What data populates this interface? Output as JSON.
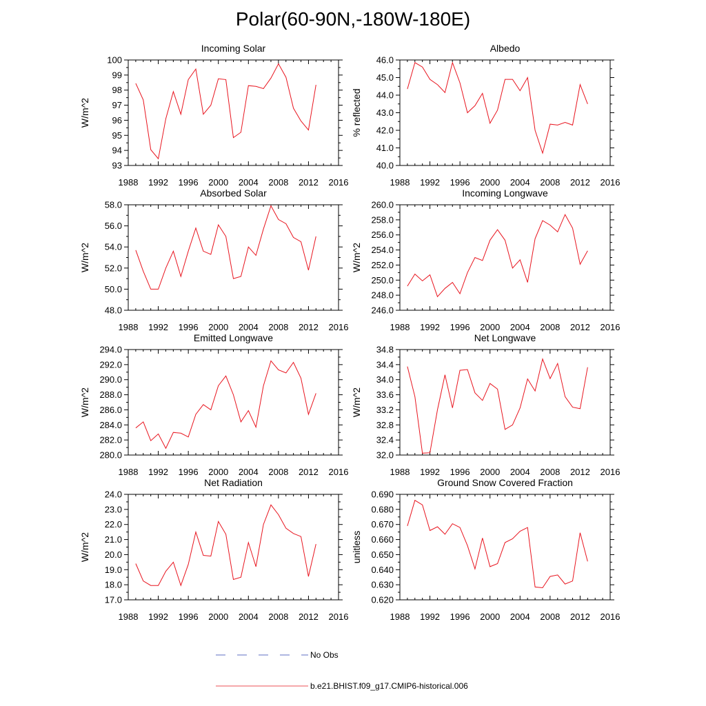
{
  "title": "Polar(60-90N,-180W-180E)",
  "legend": [
    {
      "label": "No Obs",
      "color": "#2a3fb0",
      "dash": true
    },
    {
      "label": "b.e21.BHIST.f09_g17.CMIP6-historical.006",
      "color": "#e8141e",
      "dash": false
    }
  ],
  "chart_data": [
    {
      "type": "line",
      "title": "Incoming Solar",
      "ylabel": "W/m^2",
      "xlim": [
        1988,
        2016
      ],
      "ylim": [
        93,
        100
      ],
      "xticks": [
        "1988",
        "1992",
        "1996",
        "2000",
        "2004",
        "2008",
        "2012",
        "2016"
      ],
      "yticks": [
        "93",
        "94",
        "95",
        "96",
        "97",
        "98",
        "99",
        "100"
      ],
      "series": [
        {
          "color": "#e8141e",
          "x": [
            1989,
            1990,
            1991,
            1992,
            1993,
            1994,
            1995,
            1996,
            1997,
            1998,
            1999,
            2000,
            2001,
            2002,
            2003,
            2004,
            2005,
            2006,
            2007,
            2008,
            2009,
            2010,
            2011,
            2012,
            2013
          ],
          "y": [
            98.45,
            97.35,
            94.05,
            93.45,
            96.1,
            97.9,
            96.4,
            98.7,
            99.4,
            96.4,
            97.0,
            98.75,
            98.7,
            94.85,
            95.2,
            98.3,
            98.25,
            98.1,
            98.8,
            99.75,
            98.85,
            96.8,
            95.95,
            95.35,
            98.35
          ]
        }
      ]
    },
    {
      "type": "line",
      "title": "Albedo",
      "ylabel": "% reflected",
      "xlim": [
        1988,
        2016
      ],
      "ylim": [
        40,
        46
      ],
      "xticks": [
        "1988",
        "1992",
        "1996",
        "2000",
        "2004",
        "2008",
        "2012",
        "2016"
      ],
      "yticks": [
        "40.0",
        "41.0",
        "42.0",
        "43.0",
        "44.0",
        "45.0",
        "46.0"
      ],
      "series": [
        {
          "color": "#e8141e",
          "x": [
            1989,
            1990,
            1991,
            1992,
            1993,
            1994,
            1995,
            1996,
            1997,
            1998,
            1999,
            2000,
            2001,
            2002,
            2003,
            2004,
            2005,
            2006,
            2007,
            2008,
            2009,
            2010,
            2011,
            2012,
            2013
          ],
          "y": [
            44.35,
            45.85,
            45.6,
            44.9,
            44.6,
            44.15,
            45.85,
            44.7,
            43.0,
            43.4,
            44.1,
            42.4,
            43.15,
            44.9,
            44.9,
            44.25,
            45.0,
            42.0,
            40.7,
            42.35,
            42.3,
            42.45,
            42.3,
            44.6,
            43.5
          ]
        }
      ]
    },
    {
      "type": "line",
      "title": "Absorbed Solar",
      "ylabel": "W/m^2",
      "xlim": [
        1988,
        2016
      ],
      "ylim": [
        48,
        58
      ],
      "xticks": [
        "1988",
        "1992",
        "1996",
        "2000",
        "2004",
        "2008",
        "2012",
        "2016"
      ],
      "yticks": [
        "48.0",
        "50.0",
        "52.0",
        "54.0",
        "56.0",
        "58.0"
      ],
      "series": [
        {
          "color": "#e8141e",
          "x": [
            1989,
            1990,
            1991,
            1992,
            1993,
            1994,
            1995,
            1996,
            1997,
            1998,
            1999,
            2000,
            2001,
            2002,
            2003,
            2004,
            2005,
            2006,
            2007,
            2008,
            2009,
            2010,
            2011,
            2012,
            2013
          ],
          "y": [
            53.7,
            51.7,
            50.0,
            50.0,
            52.0,
            53.6,
            51.2,
            53.6,
            55.8,
            53.6,
            53.3,
            56.1,
            55.0,
            51.0,
            51.2,
            54.0,
            53.2,
            55.7,
            57.9,
            56.6,
            56.2,
            54.9,
            54.5,
            51.8,
            55.0
          ]
        }
      ]
    },
    {
      "type": "line",
      "title": "Incoming Longwave",
      "ylabel": "W/m^2",
      "xlim": [
        1988,
        2016
      ],
      "ylim": [
        246,
        260
      ],
      "xticks": [
        "1988",
        "1992",
        "1996",
        "2000",
        "2004",
        "2008",
        "2012",
        "2016"
      ],
      "yticks": [
        "246.0",
        "248.0",
        "250.0",
        "252.0",
        "254.0",
        "256.0",
        "258.0",
        "260.0"
      ],
      "series": [
        {
          "color": "#e8141e",
          "x": [
            1989,
            1990,
            1991,
            1992,
            1993,
            1994,
            1995,
            1996,
            1997,
            1998,
            1999,
            2000,
            2001,
            2002,
            2003,
            2004,
            2005,
            2006,
            2007,
            2008,
            2009,
            2010,
            2011,
            2012,
            2013
          ],
          "y": [
            249.2,
            250.8,
            249.9,
            250.7,
            247.8,
            248.9,
            249.7,
            248.2,
            251.0,
            253.0,
            252.6,
            255.3,
            256.7,
            255.3,
            251.6,
            252.7,
            249.7,
            255.5,
            257.9,
            257.3,
            256.4,
            258.7,
            256.9,
            252.1,
            253.9
          ]
        }
      ]
    },
    {
      "type": "line",
      "title": "Emitted Longwave",
      "ylabel": "W/m^2",
      "xlim": [
        1988,
        2016
      ],
      "ylim": [
        280,
        294
      ],
      "xticks": [
        "1988",
        "1992",
        "1996",
        "2000",
        "2004",
        "2008",
        "2012",
        "2016"
      ],
      "yticks": [
        "280.0",
        "282.0",
        "284.0",
        "286.0",
        "288.0",
        "290.0",
        "292.0",
        "294.0"
      ],
      "series": [
        {
          "color": "#e8141e",
          "x": [
            1989,
            1990,
            1991,
            1992,
            1993,
            1994,
            1995,
            1996,
            1997,
            1998,
            1999,
            2000,
            2001,
            2002,
            2003,
            2004,
            2005,
            2006,
            2007,
            2008,
            2009,
            2010,
            2011,
            2012,
            2013
          ],
          "y": [
            283.6,
            284.4,
            281.9,
            282.8,
            280.9,
            283.0,
            282.9,
            282.4,
            285.4,
            286.7,
            286.0,
            289.2,
            290.5,
            288.0,
            284.4,
            285.9,
            283.7,
            289.2,
            292.5,
            291.3,
            290.9,
            292.3,
            290.2,
            285.4,
            288.2
          ]
        }
      ]
    },
    {
      "type": "line",
      "title": "Net Longwave",
      "ylabel": "W/m^2",
      "xlim": [
        1988,
        2016
      ],
      "ylim": [
        32,
        34.8
      ],
      "xticks": [
        "1988",
        "1992",
        "1996",
        "2000",
        "2004",
        "2008",
        "2012",
        "2016"
      ],
      "yticks": [
        "32.0",
        "32.4",
        "32.8",
        "33.2",
        "33.6",
        "34.0",
        "34.4",
        "34.8"
      ],
      "series": [
        {
          "color": "#e8141e",
          "x": [
            1989,
            1990,
            1991,
            1992,
            1993,
            1994,
            1995,
            1996,
            1997,
            1998,
            1999,
            2000,
            2001,
            2002,
            2003,
            2004,
            2005,
            2006,
            2007,
            2008,
            2009,
            2010,
            2011,
            2012,
            2013
          ],
          "y": [
            34.35,
            33.55,
            32.05,
            32.06,
            33.2,
            34.13,
            33.25,
            34.25,
            34.27,
            33.65,
            33.45,
            33.9,
            33.75,
            32.68,
            32.8,
            33.25,
            34.02,
            33.7,
            34.55,
            34.03,
            34.43,
            33.55,
            33.27,
            33.23,
            34.33
          ]
        }
      ]
    },
    {
      "type": "line",
      "title": "Net Radiation",
      "ylabel": "W/m^2",
      "xlim": [
        1988,
        2016
      ],
      "ylim": [
        17,
        24
      ],
      "xticks": [
        "1988",
        "1992",
        "1996",
        "2000",
        "2004",
        "2008",
        "2012",
        "2016"
      ],
      "yticks": [
        "17.0",
        "18.0",
        "19.0",
        "20.0",
        "21.0",
        "22.0",
        "23.0",
        "24.0"
      ],
      "series": [
        {
          "color": "#e8141e",
          "x": [
            1989,
            1990,
            1991,
            1992,
            1993,
            1994,
            1995,
            1996,
            1997,
            1998,
            1999,
            2000,
            2001,
            2002,
            2003,
            2004,
            2005,
            2006,
            2007,
            2008,
            2009,
            2010,
            2011,
            2012,
            2013
          ],
          "y": [
            19.4,
            18.25,
            17.95,
            17.95,
            18.9,
            19.5,
            17.95,
            19.35,
            21.5,
            19.95,
            19.9,
            22.2,
            21.35,
            18.35,
            18.5,
            20.8,
            19.2,
            22.0,
            23.3,
            22.65,
            21.75,
            21.4,
            21.2,
            18.55,
            20.7
          ]
        }
      ]
    },
    {
      "type": "line",
      "title": "Ground Snow Covered Fraction",
      "ylabel": "unitless",
      "xlim": [
        1988,
        2016
      ],
      "ylim": [
        0.62,
        0.69
      ],
      "xticks": [
        "1988",
        "1992",
        "1996",
        "2000",
        "2004",
        "2008",
        "2012",
        "2016"
      ],
      "yticks": [
        "0.620",
        "0.630",
        "0.640",
        "0.650",
        "0.660",
        "0.670",
        "0.680",
        "0.690"
      ],
      "series": [
        {
          "color": "#e8141e",
          "x": [
            1989,
            1990,
            1991,
            1992,
            1993,
            1994,
            1995,
            1996,
            1997,
            1998,
            1999,
            2000,
            2001,
            2002,
            2003,
            2004,
            2005,
            2006,
            2007,
            2008,
            2009,
            2010,
            2011,
            2012,
            2013
          ],
          "y": [
            0.669,
            0.686,
            0.683,
            0.666,
            0.6685,
            0.6635,
            0.6705,
            0.668,
            0.656,
            0.6405,
            0.661,
            0.642,
            0.644,
            0.658,
            0.6605,
            0.6655,
            0.668,
            0.6285,
            0.628,
            0.6355,
            0.6365,
            0.6305,
            0.6325,
            0.6645,
            0.6455
          ]
        }
      ]
    }
  ]
}
